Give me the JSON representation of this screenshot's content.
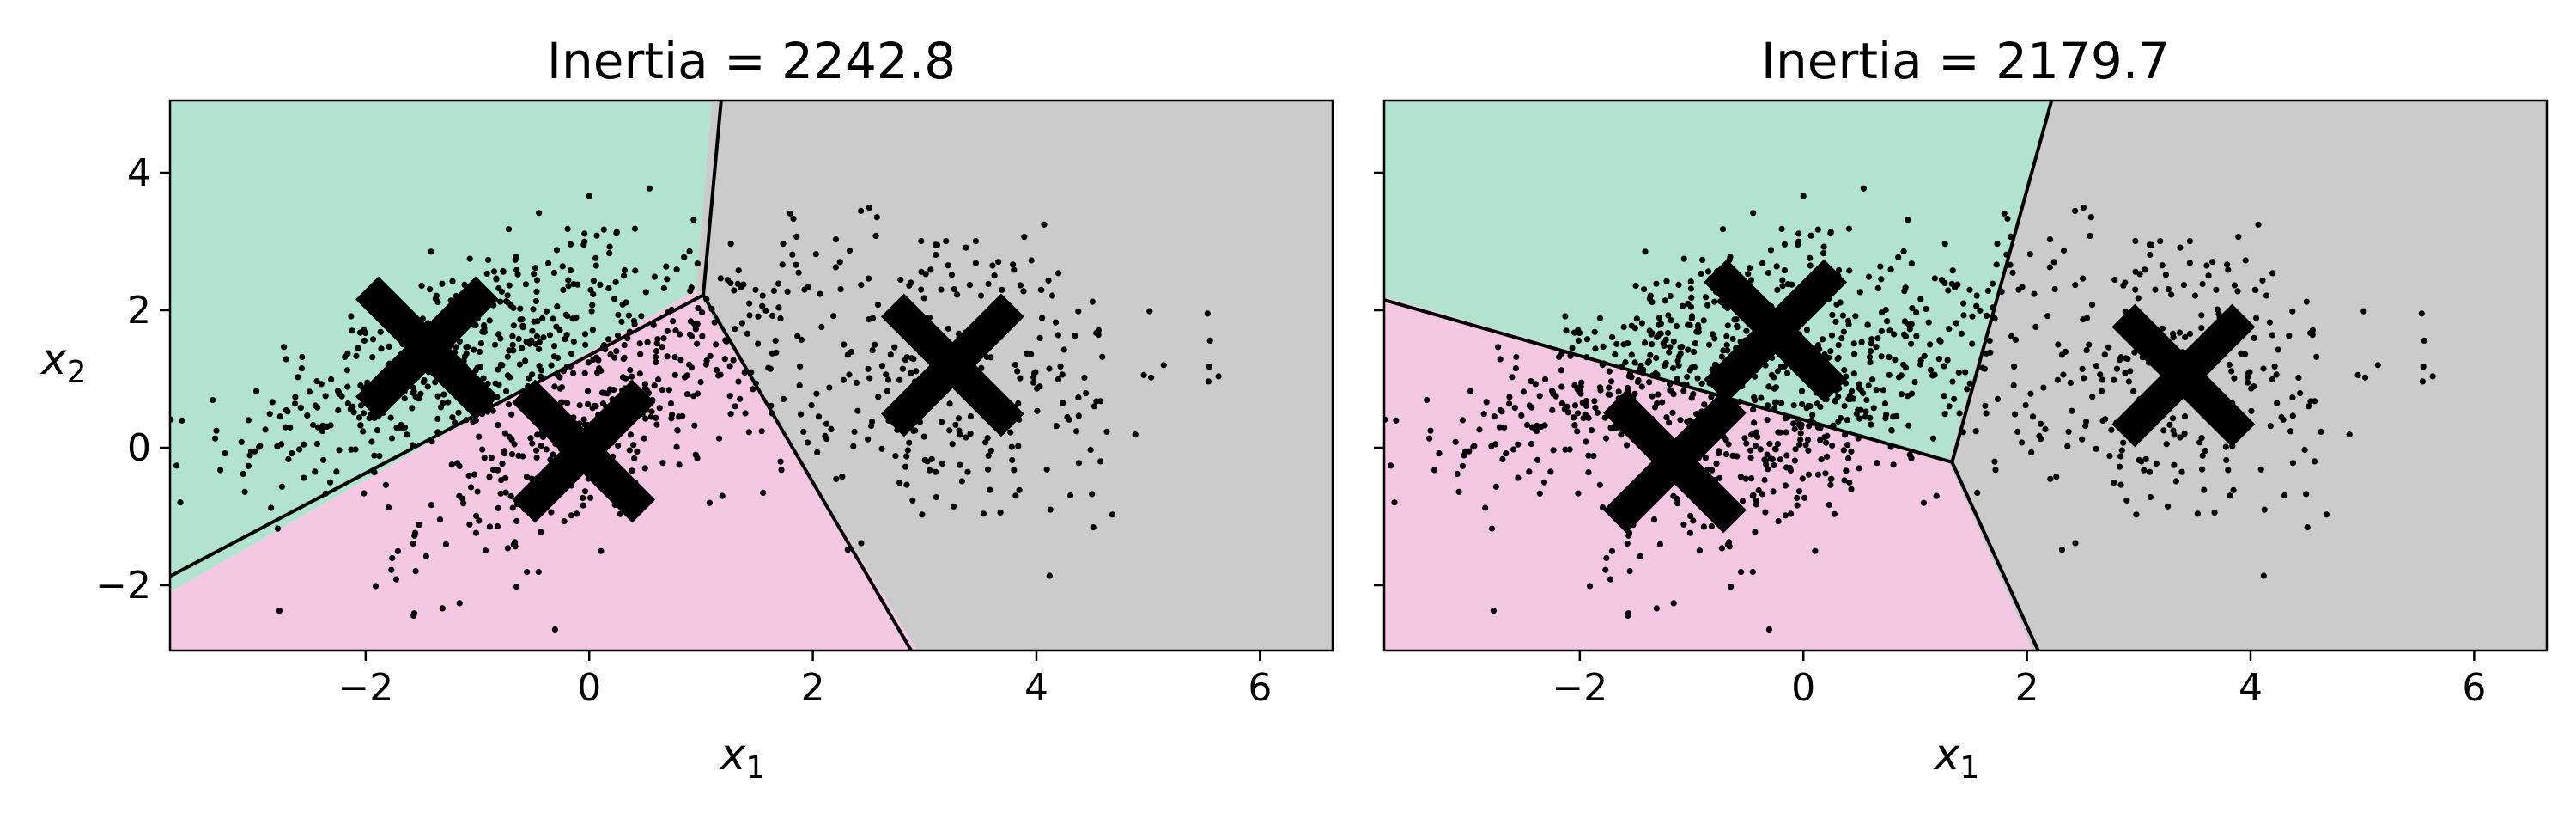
{
  "chart_data": [
    {
      "type": "scatter",
      "title": "Inertia = 2242.8",
      "xlabel": "x",
      "xlabel_sub": "1",
      "ylabel": "x",
      "ylabel_sub": "2",
      "xlim": [
        -3.75,
        6.65
      ],
      "ylim": [
        -2.95,
        5.05
      ],
      "xticks": [
        -2,
        0,
        2,
        4,
        6
      ],
      "yticks": [
        -2,
        0,
        2,
        4
      ],
      "xtick_labels": [
        "−2",
        "0",
        "2",
        "4",
        "6"
      ],
      "ytick_labels": [
        "−2",
        "0",
        "2",
        "4"
      ],
      "show_ytick_labels": true,
      "grid": false,
      "centroids": [
        {
          "x": -1.45,
          "y": 1.45
        },
        {
          "x": -0.05,
          "y": -0.05
        },
        {
          "x": 3.25,
          "y": 1.2
        }
      ],
      "boundaries": [
        {
          "points": [
            [
              -3.75,
              -1.87
            ],
            [
              1.02,
              2.22
            ]
          ]
        },
        {
          "points": [
            [
              1.02,
              2.22
            ],
            [
              1.18,
              5.05
            ]
          ]
        },
        {
          "points": [
            [
              1.02,
              2.22
            ],
            [
              2.88,
              -2.95
            ]
          ]
        }
      ],
      "region_colors": {
        "green": "#b2e3cf",
        "pink": "#f4c8e3",
        "gray": "#cbcbcb"
      },
      "point_color": "#000000",
      "centroid_color": "#000000",
      "blobs": [
        {
          "cx": -1.3,
          "cy": 1.3,
          "sx": 0.95,
          "sy": 0.9,
          "rho": 0.7,
          "n": 420
        },
        {
          "cx": 0.1,
          "cy": 0.4,
          "sx": 0.8,
          "sy": 1.0,
          "rho": 0.72,
          "n": 380
        },
        {
          "cx": 3.1,
          "cy": 1.1,
          "sx": 1.1,
          "sy": 1.15,
          "rho": 0.05,
          "n": 320
        }
      ]
    },
    {
      "type": "scatter",
      "title": "Inertia = 2179.7",
      "xlabel": "x",
      "xlabel_sub": "1",
      "xlim": [
        -3.75,
        6.65
      ],
      "ylim": [
        -2.95,
        5.05
      ],
      "xticks": [
        -2,
        0,
        2,
        4,
        6
      ],
      "yticks": [
        -2,
        0,
        2,
        4
      ],
      "xtick_labels": [
        "−2",
        "0",
        "2",
        "4",
        "6"
      ],
      "show_ytick_labels": false,
      "grid": false,
      "centroids": [
        {
          "x": -0.25,
          "y": 1.7
        },
        {
          "x": -1.15,
          "y": -0.2
        },
        {
          "x": 3.4,
          "y": 1.05
        }
      ],
      "boundaries": [
        {
          "points": [
            [
              -3.75,
              2.15
            ],
            [
              1.33,
              -0.21
            ]
          ]
        },
        {
          "points": [
            [
              1.33,
              -0.21
            ],
            [
              2.22,
              5.05
            ]
          ]
        },
        {
          "points": [
            [
              1.33,
              -0.21
            ],
            [
              2.1,
              -2.95
            ]
          ]
        }
      ],
      "region_colors": {
        "green": "#b2e3cf",
        "pink": "#f4c8e3",
        "gray": "#cbcbcb"
      },
      "point_color": "#000000",
      "centroid_color": "#000000",
      "blobs": [
        {
          "cx": -1.3,
          "cy": 1.3,
          "sx": 0.95,
          "sy": 0.9,
          "rho": 0.7,
          "n": 420
        },
        {
          "cx": 0.1,
          "cy": 0.4,
          "sx": 0.8,
          "sy": 1.0,
          "rho": 0.72,
          "n": 380
        },
        {
          "cx": 3.1,
          "cy": 1.1,
          "sx": 1.1,
          "sy": 1.15,
          "rho": 0.05,
          "n": 320
        }
      ]
    }
  ]
}
